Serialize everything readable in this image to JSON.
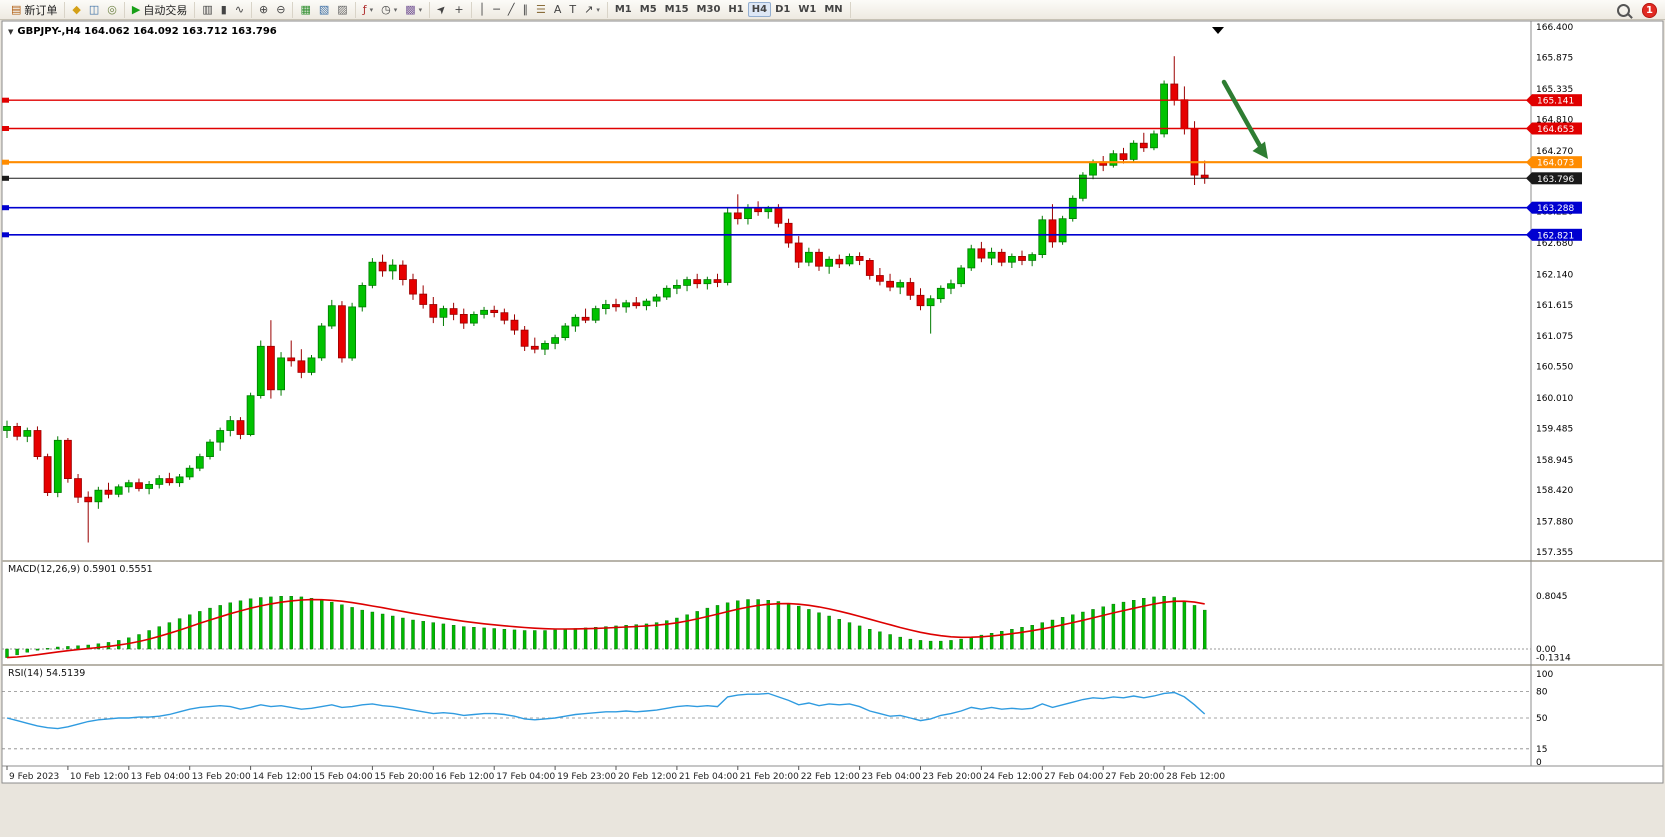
{
  "toolbar": {
    "caret_glyph": "▾",
    "notification_count": "1",
    "groups": [
      {
        "items": [
          {
            "name": "new-order-button",
            "glyph": "▤",
            "glyph_color": "#b05c10",
            "label": "新订单"
          }
        ]
      },
      {
        "items": [
          {
            "name": "market-watch-button",
            "glyph": "◆",
            "glyph_color": "#d4a017"
          },
          {
            "name": "data-window-button",
            "glyph": "◫",
            "glyph_color": "#3b6ea5"
          },
          {
            "name": "navigator-button",
            "glyph": "◎",
            "glyph_color": "#6a7f3f"
          }
        ]
      },
      {
        "items": [
          {
            "name": "auto-trading-button",
            "glyph": "▶",
            "glyph_color": "#18a018",
            "label": "自动交易"
          }
        ]
      },
      {
        "items": [
          {
            "name": "chart-bars-type-button",
            "glyph": "▥"
          },
          {
            "name": "chart-candles-type-button",
            "glyph": "▮"
          },
          {
            "name": "chart-line-type-button",
            "glyph": "∿"
          }
        ]
      },
      {
        "items": [
          {
            "name": "zoom-in-button",
            "glyph": "⊕"
          },
          {
            "name": "zoom-out-button",
            "glyph": "⊖"
          }
        ]
      },
      {
        "items": [
          {
            "name": "tile-windows-button",
            "glyph": "▦",
            "glyph_color": "#2f8f2f"
          },
          {
            "name": "cascade-windows-button",
            "glyph": "▧",
            "glyph_color": "#3b6ea5"
          },
          {
            "name": "arrange-windows-button",
            "glyph": "▨",
            "glyph_color": "#666666"
          }
        ]
      },
      {
        "items": [
          {
            "name": "indicators-button",
            "glyph": "ƒ",
            "glyph_color": "#b03030",
            "caret": true
          },
          {
            "name": "periods-button",
            "glyph": "◷",
            "caret": true
          },
          {
            "name": "templates-button",
            "glyph": "▩",
            "glyph_color": "#7a5c99",
            "caret": true
          }
        ]
      },
      {
        "items": [
          {
            "name": "cursor-button",
            "glyph": "➤"
          },
          {
            "name": "crosshair-button",
            "glyph": "+"
          }
        ]
      },
      {
        "items": [
          {
            "name": "vertical-line-button",
            "glyph": "│"
          },
          {
            "name": "horizontal-line-button",
            "glyph": "─"
          },
          {
            "name": "trendline-button",
            "glyph": "╱"
          },
          {
            "name": "equidistant-channel-button",
            "glyph": "∥"
          },
          {
            "name": "fibonacci-button",
            "glyph": "☰",
            "glyph_color": "#8a6d3b"
          },
          {
            "name": "text-button",
            "glyph": "A"
          },
          {
            "name": "text-label-button",
            "glyph": "T"
          },
          {
            "name": "arrows-shapes-button",
            "glyph": "↗",
            "caret": true
          }
        ]
      },
      {
        "items": [
          {
            "name": "timeframe-m1",
            "label": "M1"
          },
          {
            "name": "timeframe-m5",
            "label": "M5"
          },
          {
            "name": "timeframe-m15",
            "label": "M15"
          },
          {
            "name": "timeframe-m30",
            "label": "M30"
          },
          {
            "name": "timeframe-h1",
            "label": "H1"
          },
          {
            "name": "timeframe-h4",
            "label": "H4",
            "active": true
          },
          {
            "name": "timeframe-d1",
            "label": "D1"
          },
          {
            "name": "timeframe-w1",
            "label": "W1"
          },
          {
            "name": "timeframe-mn",
            "label": "MN"
          }
        ]
      }
    ]
  },
  "chart": {
    "collapse_caret": "▼",
    "header": "GBPJPY-,H4  164.062 164.092 163.712 163.796"
  },
  "chart_data": {
    "type": "candlestick",
    "symbol": "GBPJPY-",
    "timeframe": "H4",
    "ohlc": {
      "open": 164.062,
      "high": 164.092,
      "low": 163.712,
      "close": 163.796
    },
    "price_axis_labels": [
      "166.400",
      "165.875",
      "165.335",
      "164.810",
      "164.270",
      "163.745",
      "163.220",
      "162.680",
      "162.140",
      "161.615",
      "161.075",
      "160.550",
      "160.010",
      "159.485",
      "158.945",
      "158.420",
      "157.880",
      "157.355"
    ],
    "levels": [
      {
        "price": 165.141,
        "label": "165.141",
        "color": "#e00000",
        "width": 1.4
      },
      {
        "price": 164.653,
        "label": "164.653",
        "color": "#e00000",
        "width": 1.4
      },
      {
        "price": 164.073,
        "label": "164.073",
        "color": "#ff8c00",
        "width": 2.2
      },
      {
        "price": 163.796,
        "label": "163.796",
        "color": "#1a1a1a",
        "width": 1
      },
      {
        "price": 163.288,
        "label": "163.288",
        "color": "#0000d0",
        "width": 1.6
      },
      {
        "price": 162.821,
        "label": "162.821",
        "color": "#0000d0",
        "width": 1.6
      }
    ],
    "time_labels": [
      "9 Feb 2023",
      "10 Feb 12:00",
      "13 Feb 04:00",
      "13 Feb 20:00",
      "14 Feb 12:00",
      "15 Feb 04:00",
      "15 Feb 20:00",
      "16 Feb 12:00",
      "17 Feb 04:00",
      "19 Feb 23:00",
      "20 Feb 12:00",
      "21 Feb 04:00",
      "21 Feb 20:00",
      "22 Feb 12:00",
      "23 Feb 04:00",
      "23 Feb 20:00",
      "24 Feb 12:00",
      "27 Feb 04:00",
      "27 Feb 20:00",
      "28 Feb 12:00"
    ],
    "candles": [
      [
        159.45,
        159.62,
        159.32,
        159.52
      ],
      [
        159.52,
        159.58,
        159.28,
        159.35
      ],
      [
        159.35,
        159.5,
        159.25,
        159.45
      ],
      [
        159.45,
        159.52,
        158.95,
        159.0
      ],
      [
        159.0,
        159.05,
        158.32,
        158.38
      ],
      [
        158.38,
        159.35,
        158.3,
        159.28
      ],
      [
        159.28,
        159.32,
        158.55,
        158.62
      ],
      [
        158.62,
        158.7,
        158.2,
        158.3
      ],
      [
        158.3,
        158.4,
        157.52,
        158.22
      ],
      [
        158.22,
        158.48,
        158.1,
        158.42
      ],
      [
        158.42,
        158.55,
        158.28,
        158.35
      ],
      [
        158.35,
        158.52,
        158.3,
        158.48
      ],
      [
        158.48,
        158.6,
        158.38,
        158.55
      ],
      [
        158.55,
        158.62,
        158.4,
        158.45
      ],
      [
        158.45,
        158.58,
        158.35,
        158.52
      ],
      [
        158.52,
        158.68,
        158.45,
        158.62
      ],
      [
        158.62,
        158.72,
        158.5,
        158.55
      ],
      [
        158.55,
        158.7,
        158.48,
        158.65
      ],
      [
        158.65,
        158.85,
        158.6,
        158.8
      ],
      [
        158.8,
        159.05,
        158.75,
        159.0
      ],
      [
        159.0,
        159.3,
        158.95,
        159.25
      ],
      [
        159.25,
        159.5,
        159.1,
        159.45
      ],
      [
        159.45,
        159.7,
        159.35,
        159.62
      ],
      [
        159.62,
        159.68,
        159.3,
        159.38
      ],
      [
        159.38,
        160.1,
        159.35,
        160.05
      ],
      [
        160.05,
        161.0,
        160.0,
        160.9
      ],
      [
        160.9,
        161.35,
        160.0,
        160.15
      ],
      [
        160.15,
        160.8,
        160.05,
        160.7
      ],
      [
        160.7,
        161.0,
        160.55,
        160.65
      ],
      [
        160.65,
        160.85,
        160.35,
        160.45
      ],
      [
        160.45,
        160.75,
        160.4,
        160.7
      ],
      [
        160.7,
        161.3,
        160.65,
        161.25
      ],
      [
        161.25,
        161.7,
        161.2,
        161.6
      ],
      [
        161.6,
        161.68,
        160.62,
        160.7
      ],
      [
        160.7,
        161.65,
        160.65,
        161.58
      ],
      [
        161.58,
        162.0,
        161.5,
        161.95
      ],
      [
        161.95,
        162.42,
        161.9,
        162.35
      ],
      [
        162.35,
        162.48,
        162.1,
        162.2
      ],
      [
        162.2,
        162.4,
        162.05,
        162.3
      ],
      [
        162.3,
        162.38,
        161.95,
        162.05
      ],
      [
        162.05,
        162.15,
        161.7,
        161.8
      ],
      [
        161.8,
        161.95,
        161.55,
        161.62
      ],
      [
        161.62,
        161.75,
        161.3,
        161.4
      ],
      [
        161.4,
        161.6,
        161.25,
        161.55
      ],
      [
        161.55,
        161.65,
        161.35,
        161.45
      ],
      [
        161.45,
        161.55,
        161.2,
        161.3
      ],
      [
        161.3,
        161.5,
        161.25,
        161.45
      ],
      [
        161.45,
        161.58,
        161.38,
        161.52
      ],
      [
        161.52,
        161.6,
        161.4,
        161.48
      ],
      [
        161.48,
        161.55,
        161.28,
        161.35
      ],
      [
        161.35,
        161.45,
        161.1,
        161.18
      ],
      [
        161.18,
        161.25,
        160.82,
        160.9
      ],
      [
        160.9,
        161.05,
        160.78,
        160.85
      ],
      [
        160.85,
        161.0,
        160.75,
        160.95
      ],
      [
        160.95,
        161.1,
        160.85,
        161.05
      ],
      [
        161.05,
        161.3,
        161.0,
        161.25
      ],
      [
        161.25,
        161.45,
        161.15,
        161.4
      ],
      [
        161.4,
        161.55,
        161.3,
        161.35
      ],
      [
        161.35,
        161.6,
        161.3,
        161.55
      ],
      [
        161.55,
        161.7,
        161.45,
        161.62
      ],
      [
        161.62,
        161.72,
        161.5,
        161.58
      ],
      [
        161.58,
        161.7,
        161.48,
        161.65
      ],
      [
        161.65,
        161.75,
        161.55,
        161.6
      ],
      [
        161.6,
        161.72,
        161.52,
        161.68
      ],
      [
        161.68,
        161.8,
        161.58,
        161.75
      ],
      [
        161.75,
        161.95,
        161.7,
        161.9
      ],
      [
        161.9,
        162.05,
        161.8,
        161.95
      ],
      [
        161.95,
        162.1,
        161.85,
        162.05
      ],
      [
        162.05,
        162.15,
        161.9,
        161.98
      ],
      [
        161.98,
        162.1,
        161.88,
        162.05
      ],
      [
        162.05,
        162.15,
        161.92,
        162.0
      ],
      [
        162.0,
        163.3,
        161.95,
        163.2
      ],
      [
        163.2,
        163.52,
        163.0,
        163.1
      ],
      [
        163.1,
        163.35,
        163.0,
        163.28
      ],
      [
        163.28,
        163.4,
        163.15,
        163.22
      ],
      [
        163.22,
        163.32,
        163.1,
        163.28
      ],
      [
        163.28,
        163.35,
        162.95,
        163.02
      ],
      [
        163.02,
        163.1,
        162.6,
        162.68
      ],
      [
        162.68,
        162.8,
        162.25,
        162.35
      ],
      [
        162.35,
        162.6,
        162.28,
        162.52
      ],
      [
        162.52,
        162.58,
        162.2,
        162.28
      ],
      [
        162.28,
        162.45,
        162.15,
        162.4
      ],
      [
        162.4,
        162.48,
        162.25,
        162.32
      ],
      [
        162.32,
        162.5,
        162.28,
        162.45
      ],
      [
        162.45,
        162.52,
        162.3,
        162.38
      ],
      [
        162.38,
        162.42,
        162.05,
        162.12
      ],
      [
        162.12,
        162.25,
        161.95,
        162.02
      ],
      [
        162.02,
        162.15,
        161.85,
        161.92
      ],
      [
        161.92,
        162.05,
        161.8,
        162.0
      ],
      [
        162.0,
        162.08,
        161.7,
        161.78
      ],
      [
        161.78,
        161.9,
        161.52,
        161.6
      ],
      [
        161.6,
        161.78,
        161.12,
        161.72
      ],
      [
        161.72,
        161.95,
        161.65,
        161.9
      ],
      [
        161.9,
        162.05,
        161.8,
        161.98
      ],
      [
        161.98,
        162.3,
        161.92,
        162.25
      ],
      [
        162.25,
        162.65,
        162.2,
        162.58
      ],
      [
        162.58,
        162.7,
        162.35,
        162.42
      ],
      [
        162.42,
        162.6,
        162.3,
        162.52
      ],
      [
        162.52,
        162.58,
        162.28,
        162.35
      ],
      [
        162.35,
        162.5,
        162.25,
        162.45
      ],
      [
        162.45,
        162.55,
        162.3,
        162.38
      ],
      [
        162.38,
        162.52,
        162.28,
        162.48
      ],
      [
        162.48,
        163.15,
        162.42,
        163.08
      ],
      [
        163.08,
        163.35,
        162.6,
        162.7
      ],
      [
        162.7,
        163.15,
        162.65,
        163.1
      ],
      [
        163.1,
        163.5,
        163.05,
        163.45
      ],
      [
        163.45,
        163.9,
        163.4,
        163.85
      ],
      [
        163.85,
        164.12,
        163.78,
        164.08
      ],
      [
        164.08,
        164.18,
        163.92,
        164.02
      ],
      [
        164.02,
        164.28,
        163.98,
        164.22
      ],
      [
        164.22,
        164.32,
        164.05,
        164.12
      ],
      [
        164.12,
        164.45,
        164.08,
        164.4
      ],
      [
        164.4,
        164.58,
        164.25,
        164.32
      ],
      [
        164.32,
        164.62,
        164.28,
        164.56
      ],
      [
        164.56,
        165.48,
        164.5,
        165.42
      ],
      [
        165.42,
        165.9,
        165.05,
        165.15
      ],
      [
        165.15,
        165.38,
        164.55,
        164.65
      ],
      [
        164.65,
        164.78,
        163.68,
        163.85
      ],
      [
        163.85,
        164.1,
        163.7,
        163.796
      ]
    ],
    "macd": {
      "label": "MACD(12,26,9) 0.5901 0.5551",
      "macd_value": 0.5901,
      "signal_value": 0.5551,
      "axis_labels": [
        "0.8045",
        "0.00",
        "-0.1314"
      ],
      "histogram": [
        -0.13,
        -0.09,
        -0.05,
        -0.02,
        0.01,
        0.03,
        0.04,
        0.05,
        0.06,
        0.08,
        0.1,
        0.13,
        0.17,
        0.22,
        0.28,
        0.34,
        0.4,
        0.46,
        0.52,
        0.57,
        0.62,
        0.66,
        0.7,
        0.73,
        0.76,
        0.78,
        0.79,
        0.8,
        0.8,
        0.79,
        0.77,
        0.74,
        0.71,
        0.67,
        0.63,
        0.59,
        0.56,
        0.53,
        0.5,
        0.47,
        0.44,
        0.42,
        0.4,
        0.38,
        0.36,
        0.34,
        0.33,
        0.32,
        0.31,
        0.3,
        0.29,
        0.28,
        0.28,
        0.28,
        0.29,
        0.3,
        0.31,
        0.32,
        0.33,
        0.34,
        0.35,
        0.36,
        0.37,
        0.38,
        0.4,
        0.43,
        0.47,
        0.52,
        0.57,
        0.62,
        0.66,
        0.7,
        0.73,
        0.75,
        0.75,
        0.74,
        0.72,
        0.69,
        0.65,
        0.6,
        0.55,
        0.5,
        0.45,
        0.4,
        0.35,
        0.3,
        0.26,
        0.22,
        0.18,
        0.15,
        0.13,
        0.12,
        0.12,
        0.13,
        0.15,
        0.18,
        0.21,
        0.24,
        0.27,
        0.3,
        0.33,
        0.36,
        0.4,
        0.44,
        0.48,
        0.52,
        0.56,
        0.6,
        0.64,
        0.68,
        0.71,
        0.74,
        0.77,
        0.79,
        0.8,
        0.78,
        0.73,
        0.66,
        0.59
      ]
    },
    "rsi": {
      "label": "RSI(14) 54.5139",
      "value": 54.5139,
      "axis_labels": [
        "100",
        "80",
        "50",
        "15",
        "0"
      ],
      "guide_levels": [
        80,
        50,
        15
      ],
      "series": [
        50,
        47,
        44,
        41,
        39,
        38,
        40,
        43,
        46,
        48,
        49,
        50,
        50,
        51,
        51,
        52,
        54,
        57,
        60,
        62,
        63,
        64,
        63,
        60,
        62,
        65,
        63,
        64,
        62,
        60,
        61,
        63,
        65,
        62,
        63,
        65,
        66,
        64,
        63,
        61,
        59,
        57,
        55,
        56,
        55,
        53,
        54,
        55,
        55,
        54,
        52,
        49,
        48,
        49,
        50,
        52,
        54,
        55,
        56,
        57,
        57,
        58,
        57,
        58,
        59,
        61,
        63,
        64,
        63,
        64,
        63,
        74,
        76,
        77,
        77,
        78,
        74,
        70,
        65,
        67,
        64,
        66,
        65,
        66,
        63,
        58,
        55,
        52,
        53,
        50,
        47,
        49,
        53,
        55,
        58,
        62,
        60,
        62,
        60,
        61,
        60,
        61,
        66,
        62,
        65,
        68,
        71,
        73,
        72,
        74,
        73,
        75,
        73,
        75,
        78,
        79,
        74,
        65,
        54.5
      ]
    },
    "annotation_arrow": {
      "color": "#2e7d32"
    }
  }
}
